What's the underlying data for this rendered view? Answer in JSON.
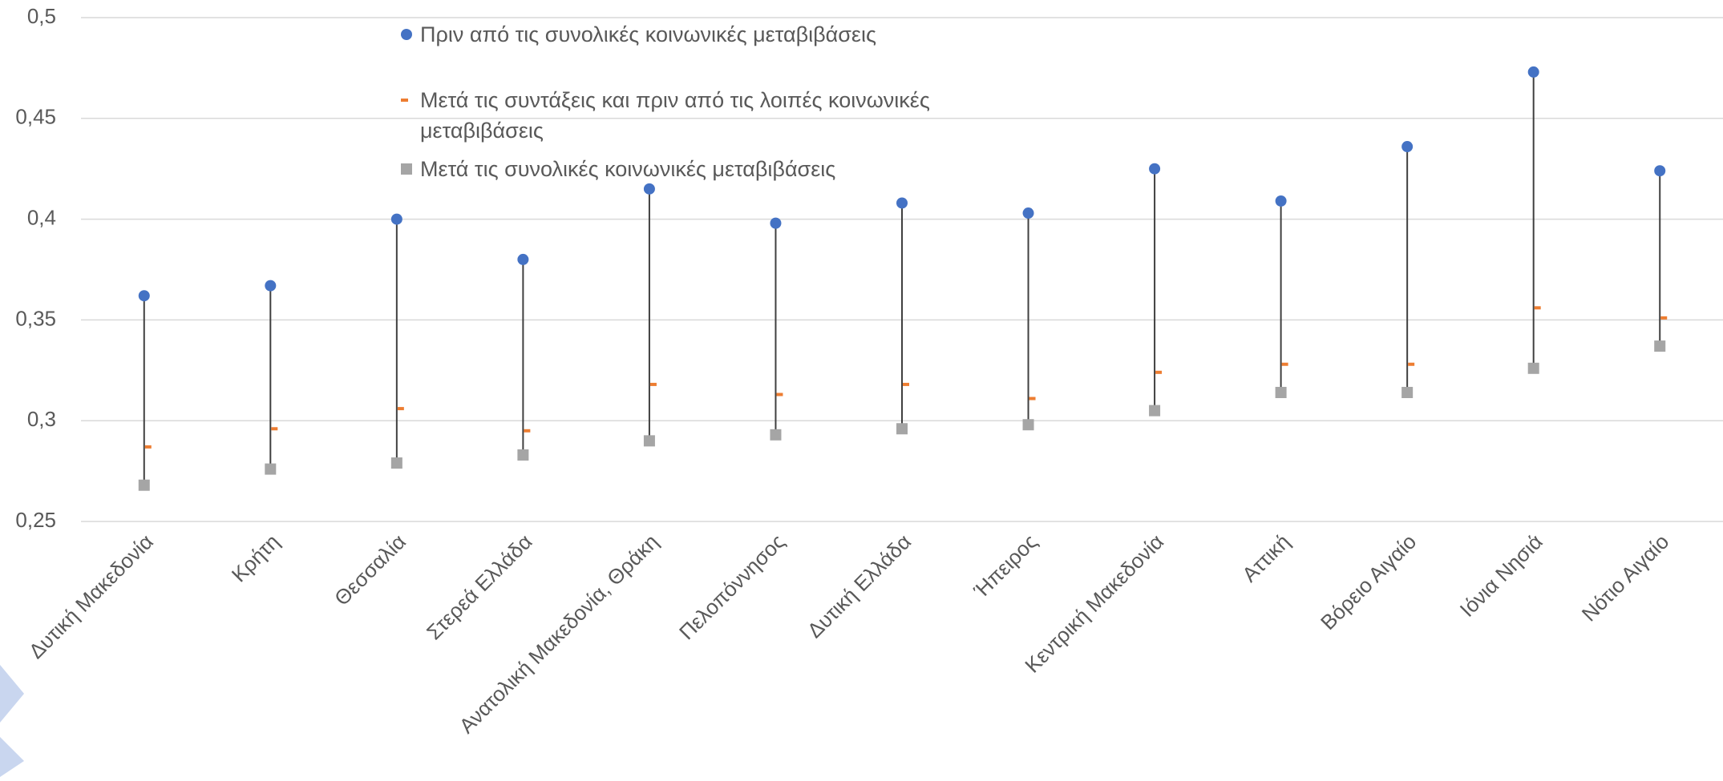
{
  "chart_data": {
    "type": "dot-range",
    "categories": [
      "Δυτική Μακεδονία",
      "Κρήτη",
      "Θεσσαλία",
      "Στερεά Ελλάδα",
      "Ανατολική Μακεδονία, Θράκη",
      "Πελοπόννησος",
      "Δυτική Ελλάδα",
      "Ήπειρος",
      "Κεντρική Μακεδονία",
      "Αττική",
      "Βόρειο Αιγαίο",
      "Ιόνια Νησιά",
      "Νότιο Αιγαίο"
    ],
    "series": [
      {
        "name": "Πριν από τις συνολικές κοινωνικές μεταβιβάσεις",
        "color": "#4472c4",
        "marker": "circle",
        "values": [
          0.362,
          0.367,
          0.4,
          0.38,
          0.415,
          0.398,
          0.408,
          0.403,
          0.425,
          0.409,
          0.436,
          0.473,
          0.424
        ]
      },
      {
        "name": "Μετά τις συντάξεις και πριν από τις λοιπές κοινωνικές μεταβιβάσεις",
        "color": "#ed7d31",
        "marker": "dash",
        "values": [
          0.287,
          0.296,
          0.306,
          0.295,
          0.318,
          0.313,
          0.318,
          0.311,
          0.324,
          0.328,
          0.328,
          0.356,
          0.351
        ]
      },
      {
        "name": "Μετά τις συνολικές κοινωνικές μεταβιβάσεις",
        "color": "#a5a5a5",
        "marker": "square",
        "values": [
          0.268,
          0.276,
          0.279,
          0.283,
          0.29,
          0.293,
          0.296,
          0.298,
          0.305,
          0.314,
          0.314,
          0.326,
          0.337
        ]
      }
    ],
    "ylim": [
      0.25,
      0.5
    ],
    "yticks": [
      {
        "value": 0.25,
        "label": "0,25"
      },
      {
        "value": 0.3,
        "label": "0,3"
      },
      {
        "value": 0.35,
        "label": "0,35"
      },
      {
        "value": 0.4,
        "label": "0,4"
      },
      {
        "value": 0.45,
        "label": "0,45"
      },
      {
        "value": 0.5,
        "label": "0,5"
      }
    ],
    "grid": true,
    "high_low_lines": true
  }
}
